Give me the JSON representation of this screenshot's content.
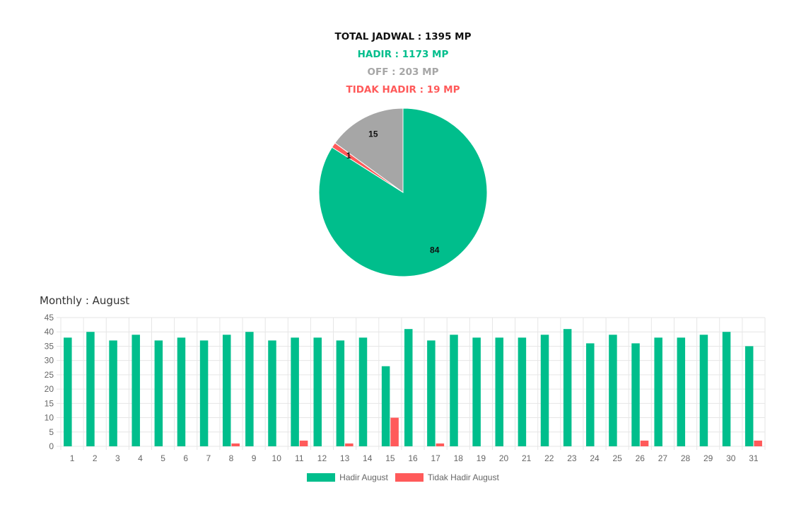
{
  "summary": {
    "total": "TOTAL JADWAL : 1395 MP",
    "hadir": "HADIR : 1173 MP",
    "off": "OFF : 203 MP",
    "tidak_hadir": "TIDAK HADIR : 19 MP"
  },
  "colors": {
    "total": "#111111",
    "hadir": "#00be8c",
    "off": "#a6a6a6",
    "tidak_hadir": "#ff5a5a",
    "grid": "#e6e6e6",
    "tick": "#666666"
  },
  "monthly_title": "Monthly : August",
  "chart_data": [
    {
      "type": "pie",
      "slices": [
        {
          "label": "Hadir",
          "value": 84,
          "display": "84",
          "color": "#00be8c"
        },
        {
          "label": "Tidak Hadir",
          "value": 1,
          "display": "1",
          "color": "#ff5a5a"
        },
        {
          "label": "Off",
          "value": 15,
          "display": "15",
          "color": "#a6a6a6"
        }
      ],
      "start": "12 o'clock",
      "direction": "clockwise"
    },
    {
      "type": "bar",
      "title": "Monthly : August",
      "categories": [
        "1",
        "2",
        "3",
        "4",
        "5",
        "6",
        "7",
        "8",
        "9",
        "10",
        "11",
        "12",
        "13",
        "14",
        "15",
        "16",
        "17",
        "18",
        "19",
        "20",
        "21",
        "22",
        "23",
        "24",
        "25",
        "26",
        "27",
        "28",
        "29",
        "30",
        "31"
      ],
      "series": [
        {
          "name": "Hadir August",
          "color": "#00be8c",
          "values": [
            38,
            40,
            37,
            39,
            37,
            38,
            37,
            39,
            40,
            37,
            38,
            38,
            37,
            38,
            28,
            41,
            37,
            39,
            38,
            38,
            38,
            39,
            41,
            36,
            39,
            36,
            38,
            38,
            39,
            40,
            35
          ]
        },
        {
          "name": "Tidak Hadir August",
          "color": "#ff5a5a",
          "values": [
            0,
            0,
            0,
            0,
            0,
            0,
            0,
            1,
            0,
            0,
            2,
            0,
            1,
            0,
            10,
            0,
            1,
            0,
            0,
            0,
            0,
            0,
            0,
            0,
            0,
            2,
            0,
            0,
            0,
            0,
            2
          ]
        }
      ],
      "ylim": [
        0,
        45
      ],
      "yticks": [
        0,
        5,
        10,
        15,
        20,
        25,
        30,
        35,
        40,
        45
      ],
      "grid": true,
      "legend": "bottom"
    }
  ]
}
